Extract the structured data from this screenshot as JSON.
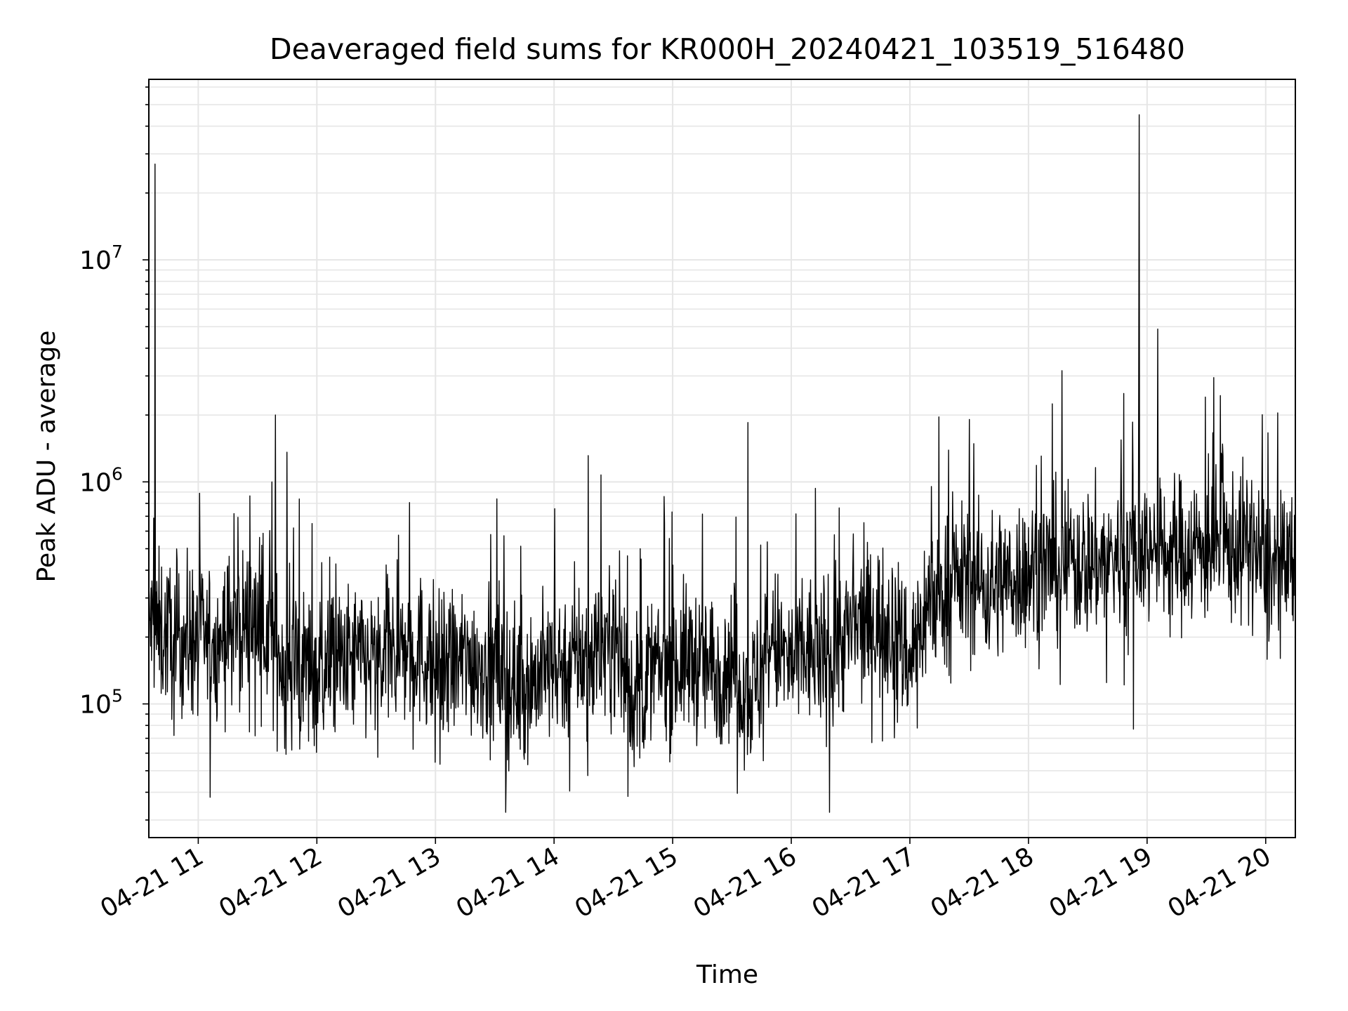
{
  "chart_data": {
    "type": "line",
    "title": "Deaveraged field sums for KR000H_20240421_103519_516480",
    "xlabel": "Time",
    "ylabel": "Peak ADU - average",
    "x_range": [
      "04-21 10:35",
      "04-21 20:15"
    ],
    "y_scale": "log",
    "ylim": [
      25000,
      65000000
    ],
    "grid": true,
    "line_color": "#000000",
    "grid_color": "#e6e6e6",
    "x_tick_labels": [
      "04-21 11",
      "04-21 12",
      "04-21 13",
      "04-21 14",
      "04-21 15",
      "04-21 16",
      "04-21 17",
      "04-21 18",
      "04-21 19",
      "04-21 20"
    ],
    "y_tick_labels": [
      {
        "value": 100000,
        "base": "10",
        "exp": "5"
      },
      {
        "value": 1000000,
        "base": "10",
        "exp": "6"
      },
      {
        "value": 10000000,
        "base": "10",
        "exp": "7"
      }
    ],
    "series": [
      {
        "x": [
          "04-21 10:35",
          "04-21 10:40",
          "04-21 10:50",
          "04-21 11:00",
          "04-21 11:10",
          "04-21 11:20",
          "04-21 11:30",
          "04-21 11:40",
          "04-21 11:50",
          "04-21 12:00",
          "04-21 12:10",
          "04-21 12:20",
          "04-21 12:30",
          "04-21 12:40",
          "04-21 12:50",
          "04-21 13:00",
          "04-21 13:10",
          "04-21 13:20",
          "04-21 13:30",
          "04-21 13:40",
          "04-21 13:50",
          "04-21 14:00",
          "04-21 14:10",
          "04-21 14:20",
          "04-21 14:30",
          "04-21 14:40",
          "04-21 14:50",
          "04-21 15:00",
          "04-21 15:10",
          "04-21 15:20",
          "04-21 15:30",
          "04-21 15:40",
          "04-21 15:50",
          "04-21 16:00",
          "04-21 16:10",
          "04-21 16:20",
          "04-21 16:30",
          "04-21 16:40",
          "04-21 16:50",
          "04-21 17:00",
          "04-21 17:10",
          "04-21 17:20",
          "04-21 17:30",
          "04-21 17:40",
          "04-21 17:50",
          "04-21 18:00",
          "04-21 18:10",
          "04-21 18:20",
          "04-21 18:30",
          "04-21 18:40",
          "04-21 18:50",
          "04-21 19:00",
          "04-21 19:10",
          "04-21 19:20",
          "04-21 19:30",
          "04-21 19:40",
          "04-21 19:50",
          "04-21 20:00",
          "04-21 20:10",
          "04-21 20:15"
        ],
        "values": [
          230000,
          210000,
          200000,
          190000,
          200000,
          220000,
          250000,
          170000,
          150000,
          140000,
          150000,
          160000,
          150000,
          170000,
          180000,
          150000,
          150000,
          160000,
          140000,
          120000,
          130000,
          150000,
          160000,
          170000,
          200000,
          110000,
          140000,
          150000,
          160000,
          140000,
          160000,
          110000,
          190000,
          150000,
          170000,
          180000,
          210000,
          230000,
          240000,
          160000,
          300000,
          330000,
          380000,
          330000,
          370000,
          400000,
          420000,
          440000,
          430000,
          450000,
          480000,
          500000,
          480000,
          500000,
          520000,
          500000,
          530000,
          420000,
          380000,
          420000
        ]
      }
    ],
    "spikes": [
      {
        "x": "04-21 10:38",
        "value": 27000000
      },
      {
        "x": "04-21 11:39",
        "value": 2000000
      },
      {
        "x": "04-21 15:38",
        "value": 1850000
      },
      {
        "x": "04-21 18:48",
        "value": 2500000
      },
      {
        "x": "04-21 18:56",
        "value": 45000000
      }
    ]
  }
}
